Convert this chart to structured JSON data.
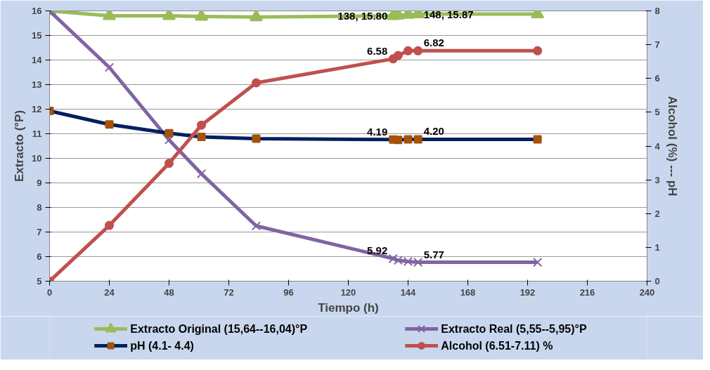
{
  "chart_data": {
    "type": "line",
    "xlabel": "Tiempo (h)",
    "ylabel": "Extracto (°P)",
    "y2label": "Alcohol (%) --- pH",
    "x": [
      0,
      24,
      48,
      61,
      83,
      138,
      140,
      144,
      148,
      196
    ],
    "xlim": [
      0,
      240
    ],
    "xticks": [
      0,
      24,
      48,
      72,
      96,
      120,
      144,
      168,
      192,
      216,
      240
    ],
    "ylim": [
      5,
      16
    ],
    "yticks": [
      5,
      6,
      7,
      8,
      9,
      10,
      11,
      12,
      13,
      14,
      15,
      16
    ],
    "y2lim": [
      0,
      8
    ],
    "y2ticks": [
      0,
      1,
      2,
      3,
      4,
      5,
      6,
      7,
      8
    ],
    "grid": "y",
    "legend": "bottom",
    "series": [
      {
        "name": "Extracto Original (15,64--16,04)°P",
        "color": "#9bbb59",
        "marker": "triangle",
        "values": [
          16.0,
          15.8,
          15.8,
          15.77,
          15.75,
          15.8,
          15.82,
          15.85,
          15.87,
          15.87
        ],
        "value_labels": [
          null,
          null,
          null,
          null,
          null,
          "138, 15.80",
          null,
          null,
          "148, 15.87",
          null
        ]
      },
      {
        "name": "Extracto Real (5,55--5,95)°P",
        "color": "#8064a2",
        "marker": "cross",
        "values": [
          16.0,
          13.7,
          10.75,
          9.37,
          7.25,
          5.92,
          5.85,
          5.8,
          5.77,
          5.77
        ],
        "value_labels": [
          null,
          null,
          null,
          null,
          null,
          "5.92",
          null,
          null,
          "5.77",
          null
        ]
      },
      {
        "name": "pH (4.1- 4.4)",
        "color": "#002060",
        "marker": "square",
        "axis": "y2",
        "colors": [
          "#a5520d",
          "#a5520d",
          "#a5520d",
          "#a5520d",
          "#a5520d",
          "#a5520d",
          "#a5520d",
          "#a5520d",
          "#a5520d",
          "#a5520d"
        ],
        "values": [
          5.04,
          4.64,
          4.38,
          4.27,
          4.22,
          4.19,
          4.18,
          4.2,
          4.2,
          4.2
        ],
        "value_labels": [
          null,
          null,
          null,
          null,
          null,
          "4.19",
          null,
          null,
          "4.20",
          null
        ]
      },
      {
        "name": "Alcohol (6.51-7.11) %",
        "color": "#c0504d",
        "marker": "circle",
        "axis": "y2",
        "values": [
          0,
          1.65,
          3.49,
          4.62,
          5.87,
          6.58,
          6.68,
          6.82,
          6.82,
          6.82
        ],
        "value_labels": [
          null,
          null,
          null,
          null,
          null,
          "6.58",
          null,
          null,
          "6.82",
          null
        ]
      }
    ]
  }
}
